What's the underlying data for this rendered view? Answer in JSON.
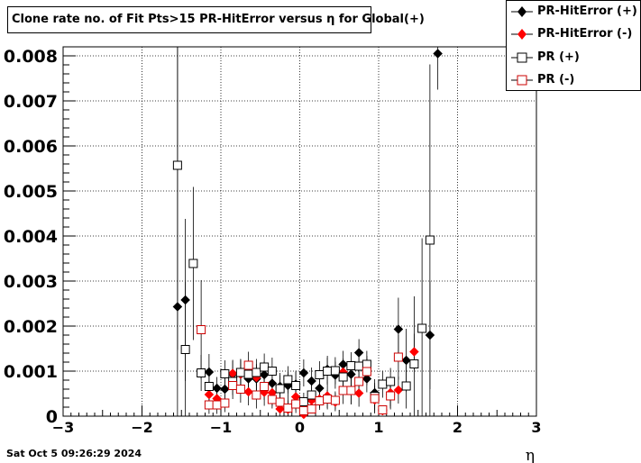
{
  "chart_data": {
    "type": "scatter",
    "title": "Clone rate no. of Fit Pts>15 PR-HitError versus η for Global(+)",
    "xlabel": "η",
    "ylabel": "",
    "xlim": [
      -3,
      3
    ],
    "ylim": [
      0,
      0.0082
    ],
    "x_ticks": [
      -3,
      -2,
      -1,
      0,
      1,
      2,
      3
    ],
    "x_tick_labels": [
      "−3",
      "−2",
      "−1",
      "0",
      "1",
      "2",
      "3"
    ],
    "y_ticks": [
      0,
      0.001,
      0.002,
      0.003,
      0.004,
      0.005,
      0.006,
      0.007,
      0.008
    ],
    "y_tick_labels": [
      "0",
      "0.001",
      "0.002",
      "0.003",
      "0.004",
      "0.005",
      "0.006",
      "0.007",
      "0.008"
    ],
    "grid": true,
    "legend_position": "top-right",
    "series": [
      {
        "name": "PR-HitError (+)",
        "marker": "diamond-filled",
        "color": "#000000",
        "points": [
          [
            -1.55,
            0.00243,
            0.0088
          ],
          [
            -1.45,
            0.00258,
            0.0018
          ],
          [
            -1.15,
            0.00098,
            0.0004
          ],
          [
            -1.05,
            0.00062,
            0.00025
          ],
          [
            -0.95,
            0.0006,
            0.00025
          ],
          [
            -0.85,
            0.00093,
            0.0003
          ],
          [
            -0.75,
            0.00096,
            0.0003
          ],
          [
            -0.65,
            0.00083,
            0.0003
          ],
          [
            -0.55,
            0.00083,
            0.0003
          ],
          [
            -0.45,
            0.00092,
            0.0003
          ],
          [
            -0.35,
            0.00073,
            0.0003
          ],
          [
            -0.25,
            0.00066,
            0.0003
          ],
          [
            -0.15,
            0.00068,
            0.0003
          ],
          [
            -0.05,
            0.00071,
            0.0003
          ],
          [
            0.05,
            0.00096,
            0.0003
          ],
          [
            0.15,
            0.00078,
            0.0003
          ],
          [
            0.25,
            0.00062,
            0.0003
          ],
          [
            0.35,
            0.00104,
            0.0003
          ],
          [
            0.45,
            0.00091,
            0.0003
          ],
          [
            0.55,
            0.00115,
            0.0003
          ],
          [
            0.65,
            0.00093,
            0.0003
          ],
          [
            0.75,
            0.00141,
            0.0003
          ],
          [
            0.85,
            0.00083,
            0.0003
          ],
          [
            0.95,
            0.00052,
            0.0003
          ],
          [
            1.05,
            0.00014,
            8e-05
          ],
          [
            1.15,
            0.00048,
            0.0003
          ],
          [
            1.25,
            0.00193,
            0.0007
          ],
          [
            1.35,
            0.00124,
            0.0007
          ],
          [
            1.65,
            0.0018,
            0.0012
          ],
          [
            1.75,
            0.00805,
            0.0008
          ]
        ]
      },
      {
        "name": "PR-HitError (-)",
        "marker": "diamond-filled",
        "color": "#ff0000",
        "points": [
          [
            -1.15,
            0.00048,
            0.0003
          ],
          [
            -1.05,
            0.00039,
            0.0002
          ],
          [
            -0.85,
            0.00095,
            0.0003
          ],
          [
            -0.75,
            0.00093,
            0.0003
          ],
          [
            -0.65,
            0.00054,
            0.0003
          ],
          [
            -0.55,
            0.00086,
            0.0003
          ],
          [
            -0.45,
            0.00053,
            0.0003
          ],
          [
            -0.35,
            0.00052,
            0.0003
          ],
          [
            -0.25,
            0.00016,
            0.0002
          ],
          [
            -0.15,
            0.00015,
            0.0002
          ],
          [
            -0.05,
            0.00043,
            0.0003
          ],
          [
            0.05,
            4e-05,
            5e-05
          ],
          [
            0.15,
            0.00035,
            0.0002
          ],
          [
            0.25,
            0.00038,
            0.0002
          ],
          [
            0.35,
            0.00045,
            0.0003
          ],
          [
            0.45,
            0.00031,
            0.0002
          ],
          [
            0.55,
            0.00098,
            0.0003
          ],
          [
            0.65,
            0.00056,
            0.0003
          ],
          [
            0.75,
            0.00051,
            0.0003
          ],
          [
            0.85,
            0.00104,
            0.0003
          ],
          [
            0.95,
            0.00036,
            0.0003
          ],
          [
            1.05,
            0.00012,
            0.0001
          ],
          [
            1.15,
            0.00052,
            0.0003
          ],
          [
            1.25,
            0.00058,
            0.0003
          ],
          [
            1.45,
            0.00143,
            0.0004
          ]
        ]
      },
      {
        "name": "PR (+)",
        "marker": "square-open",
        "color": "#000000",
        "points": [
          [
            -1.55,
            0.00557,
            0.0041
          ],
          [
            -1.45,
            0.00148,
            0.0015
          ],
          [
            -1.35,
            0.00339,
            0.0017
          ],
          [
            -1.25,
            0.00096,
            0.0004
          ],
          [
            -1.15,
            0.00066,
            0.0003
          ],
          [
            -0.95,
            0.00094,
            0.0003
          ],
          [
            -0.85,
            0.00077,
            0.0003
          ],
          [
            -0.75,
            0.00097,
            0.0003
          ],
          [
            -0.65,
            0.00093,
            0.0003
          ],
          [
            -0.55,
            0.00097,
            0.0003
          ],
          [
            -0.45,
            0.00109,
            0.0003
          ],
          [
            -0.35,
            0.001,
            0.0003
          ],
          [
            -0.25,
            0.00061,
            0.0003
          ],
          [
            -0.15,
            0.00081,
            0.0003
          ],
          [
            -0.05,
            0.00068,
            0.0003
          ],
          [
            0.05,
            0.00032,
            0.0002
          ],
          [
            0.15,
            0.00047,
            0.0003
          ],
          [
            0.25,
            0.00092,
            0.0003
          ],
          [
            0.35,
            0.001,
            0.0003
          ],
          [
            0.45,
            0.00101,
            0.0003
          ],
          [
            0.55,
            0.00087,
            0.0003
          ],
          [
            0.65,
            0.00112,
            0.0003
          ],
          [
            0.75,
            0.00111,
            0.0003
          ],
          [
            0.85,
            0.00115,
            0.0003
          ],
          [
            0.95,
            0.00044,
            0.0003
          ],
          [
            1.05,
            0.00071,
            0.0003
          ],
          [
            1.15,
            0.00077,
            0.0003
          ],
          [
            1.35,
            0.00067,
            0.0005
          ],
          [
            1.45,
            0.00116,
            0.0015
          ],
          [
            1.55,
            0.00195,
            0.002
          ],
          [
            1.65,
            0.00391,
            0.0039
          ]
        ]
      },
      {
        "name": "PR (-)",
        "marker": "square-open",
        "color": "#cc0000",
        "points": [
          [
            -1.25,
            0.00192,
            0.0011
          ],
          [
            -1.15,
            0.00025,
            0.0002
          ],
          [
            -1.05,
            0.00025,
            0.0002
          ],
          [
            -0.95,
            0.00029,
            0.0002
          ],
          [
            -0.85,
            0.00068,
            0.0003
          ],
          [
            -0.75,
            0.0006,
            0.0003
          ],
          [
            -0.65,
            0.00113,
            0.0003
          ],
          [
            -0.55,
            0.00047,
            0.0003
          ],
          [
            -0.45,
            0.00066,
            0.0003
          ],
          [
            -0.35,
            0.00037,
            0.0002
          ],
          [
            -0.25,
            0.00031,
            0.0002
          ],
          [
            -0.15,
            0.00018,
            0.0002
          ],
          [
            -0.05,
            0.00027,
            0.0002
          ],
          [
            0.05,
            0.00012,
            0.0001
          ],
          [
            0.15,
            0.00016,
            0.0001
          ],
          [
            0.25,
            0.00034,
            0.0002
          ],
          [
            0.35,
            0.00038,
            0.0002
          ],
          [
            0.45,
            0.00035,
            0.0002
          ],
          [
            0.55,
            0.00057,
            0.0003
          ],
          [
            0.65,
            0.00057,
            0.0003
          ],
          [
            0.75,
            0.00077,
            0.0003
          ],
          [
            0.85,
            0.00099,
            0.0003
          ],
          [
            0.95,
            0.00039,
            0.0003
          ],
          [
            1.05,
            0.00014,
            0.0001
          ],
          [
            1.15,
            0.00045,
            0.0003
          ],
          [
            1.25,
            0.00131,
            0.0005
          ]
        ]
      }
    ]
  },
  "timestamp": "Sat Oct  5 09:26:29 2024"
}
